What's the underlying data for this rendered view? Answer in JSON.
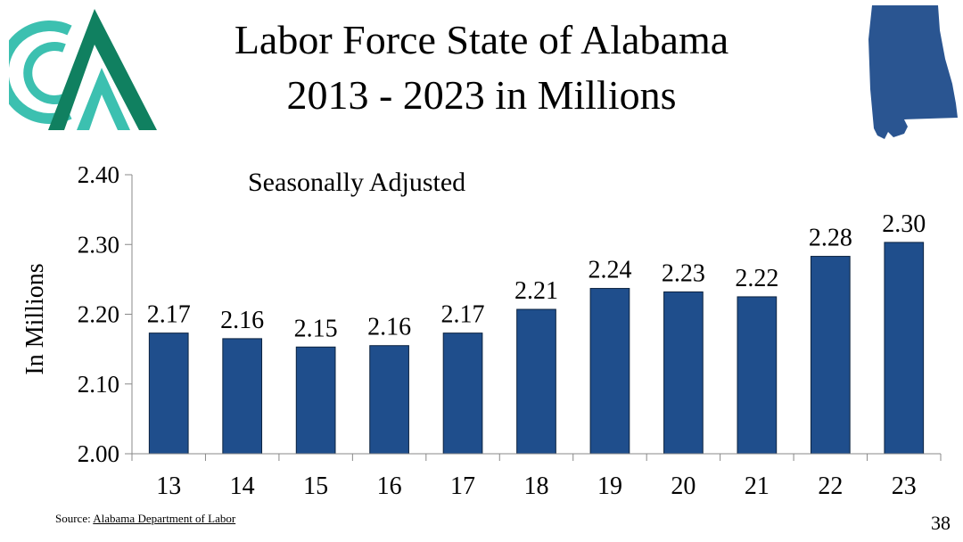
{
  "slide": {
    "title_line1": "Labor Force State of Alabama",
    "title_line2": "2013 - 2023 in Millions",
    "page_number": "38",
    "source_label": "Source:",
    "source_link": "Alabama Department of Labor"
  },
  "colors": {
    "bar": "#1f4e8c",
    "map": "#2a5591",
    "logo_teal": "#3cc0b0",
    "logo_green": "#108060"
  },
  "chart_data": {
    "type": "bar",
    "title": "",
    "annotation": "Seasonally Adjusted",
    "xlabel": "",
    "ylabel": "In Millions",
    "categories": [
      "13",
      "14",
      "15",
      "16",
      "17",
      "18",
      "19",
      "20",
      "21",
      "22",
      "23"
    ],
    "values": [
      2.173,
      2.165,
      2.153,
      2.155,
      2.173,
      2.207,
      2.237,
      2.232,
      2.225,
      2.283,
      2.303
    ],
    "data_labels": [
      "2.17",
      "2.16",
      "2.15",
      "2.16",
      "2.17",
      "2.21",
      "2.24",
      "2.23",
      "2.22",
      "2.28",
      "2.30"
    ],
    "ylim": [
      2.0,
      2.4
    ],
    "yticks": [
      2.0,
      2.1,
      2.2,
      2.3,
      2.4
    ],
    "ytick_labels": [
      "2.00",
      "2.10",
      "2.20",
      "2.30",
      "2.40"
    ],
    "grid": false,
    "legend": "none"
  }
}
